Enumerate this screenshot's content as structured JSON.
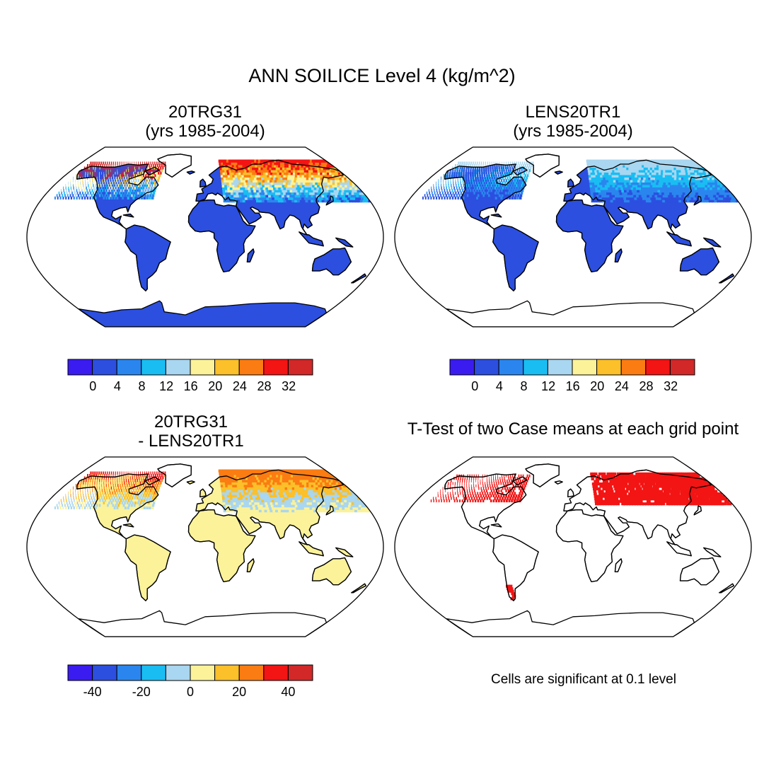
{
  "title": "ANN SOILICE Level 4 (kg/m^2)",
  "colors": {
    "palette": [
      "#3a1cf0",
      "#2c4fe0",
      "#2a86ee",
      "#19bdf2",
      "#a9d6f0",
      "#fbf29a",
      "#fbc02a",
      "#fb7c12",
      "#f31414",
      "#d22828"
    ],
    "ocean": "#ffffff",
    "land_outline": "#000000",
    "significant": "#ff0000"
  },
  "panels": [
    {
      "id": "case1",
      "title_line1": "20TRG31",
      "title_line2": "(yrs 1985-2004)",
      "field": {
        "default": 1,
        "north_america": [
          1,
          2,
          3,
          4,
          5,
          6,
          8,
          9
        ],
        "eurasia": [
          1,
          2,
          3,
          4,
          5,
          6,
          7,
          8
        ],
        "antarctica": [
          3,
          4,
          1
        ]
      }
    },
    {
      "id": "case2",
      "title_line1": "LENS20TR1",
      "title_line2": "(yrs 1985-2004)",
      "field": {
        "default": 1,
        "north_america": [
          1,
          2,
          3,
          4
        ],
        "eurasia": [
          1,
          2,
          3,
          4
        ],
        "antarctica": []
      }
    },
    {
      "id": "difference",
      "title_line1": "20TRG31",
      "title_line2": "- LENS20TR1",
      "field": {
        "default": 5,
        "north_america": [
          5,
          4,
          6,
          7,
          8
        ],
        "eurasia": [
          5,
          4,
          6,
          7
        ],
        "antarctica": []
      }
    },
    {
      "id": "ttest",
      "title_line1": "T-Test of two Case means at each grid point",
      "title_line2": "",
      "field": {
        "significant_regions": [
          "northern North America",
          "northern Eurasia",
          "southern Andes"
        ]
      }
    }
  ],
  "colorbars": [
    {
      "id": "cbar-case1",
      "tick_labels": [
        "0",
        "4",
        "8",
        "12",
        "16",
        "20",
        "24",
        "28",
        "32"
      ]
    },
    {
      "id": "cbar-case2",
      "tick_labels": [
        "0",
        "4",
        "8",
        "12",
        "16",
        "20",
        "24",
        "28",
        "32"
      ]
    },
    {
      "id": "cbar-diff",
      "tick_labels": [
        "-40",
        "-20",
        "0",
        "20",
        "40"
      ]
    }
  ],
  "ttest_note": "Cells are significant at 0.1 level"
}
